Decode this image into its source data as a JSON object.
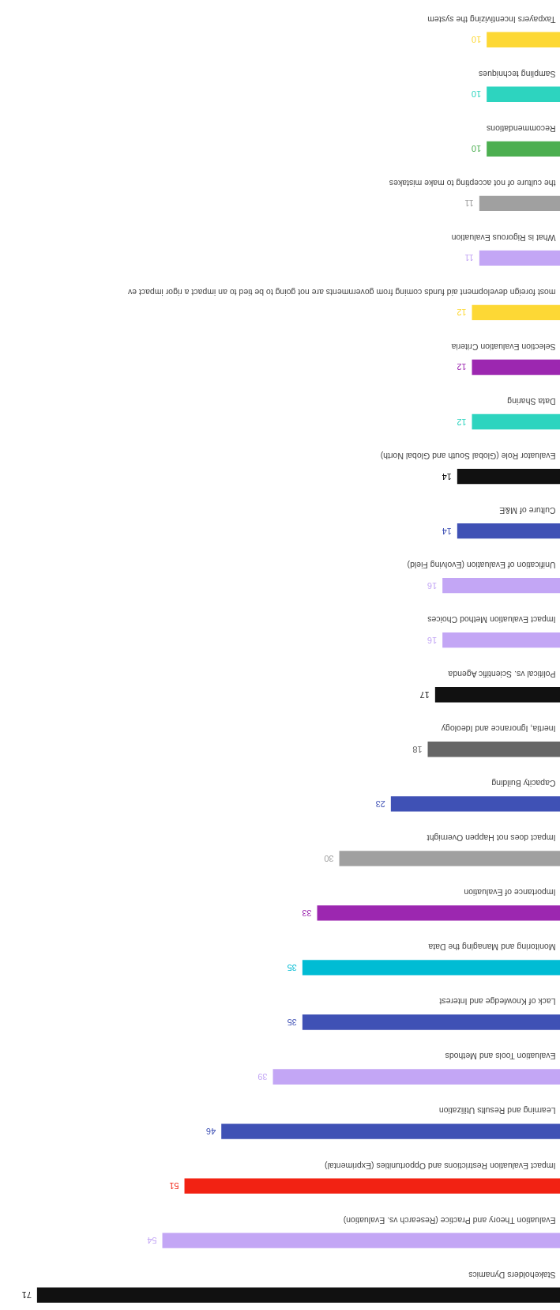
{
  "chart_data": {
    "type": "bar",
    "orientation": "horizontal",
    "data_labels": true,
    "categories": [
      "Taxpayers Incentivizing the system",
      "Sampling techniques",
      "Recommendations",
      "the culture of not accepting to make mistakes",
      "What is Rigorous Evaluation",
      "most foreign development aid funds coming from governments are not going to be tied to an impact a rigor impact ev",
      "Selection Evaluation Criteria",
      "Data Sharing",
      "Evaluator Role (Global South and Global North)",
      "Culture of M&E",
      "Unification of Evaluation (Evolving Field)",
      "Impact Evaluation Method Choices",
      "Political vs. Scientific Agenda",
      "Inertia, Ignorance and Ideology",
      "Capacity Building",
      "Impact does not Happen Overnight",
      "Importance of Evaluation",
      "Monitoring and Managing the Data",
      "Lack of Knowledge and Interest",
      "Evaluation Tools and Methods",
      "Learning and Results Utilization",
      "Impact Evaluation Restrictions and Opportunities (Exprimental)",
      "Evaluation Theory and Practice (Research vs. Evaluation)",
      "Stakeholders Dynamics"
    ],
    "values": [
      10,
      10,
      10,
      11,
      11,
      12,
      12,
      12,
      14,
      14,
      16,
      16,
      17,
      18,
      23,
      30,
      33,
      35,
      35,
      39,
      46,
      51,
      54,
      71
    ],
    "colors": [
      "#fdd835",
      "#2dd4bf",
      "#4caf50",
      "#a0a0a0",
      "#c3a6f5",
      "#fdd835",
      "#9c27b0",
      "#2dd4bf",
      "#111111",
      "#3f51b5",
      "#c3a6f5",
      "#c3a6f5",
      "#111111",
      "#666666",
      "#3f51b5",
      "#a0a0a0",
      "#9c27b0",
      "#00bcd4",
      "#3f51b5",
      "#c3a6f5",
      "#3f51b5",
      "#f22213",
      "#c3a6f5",
      "#111111"
    ]
  }
}
